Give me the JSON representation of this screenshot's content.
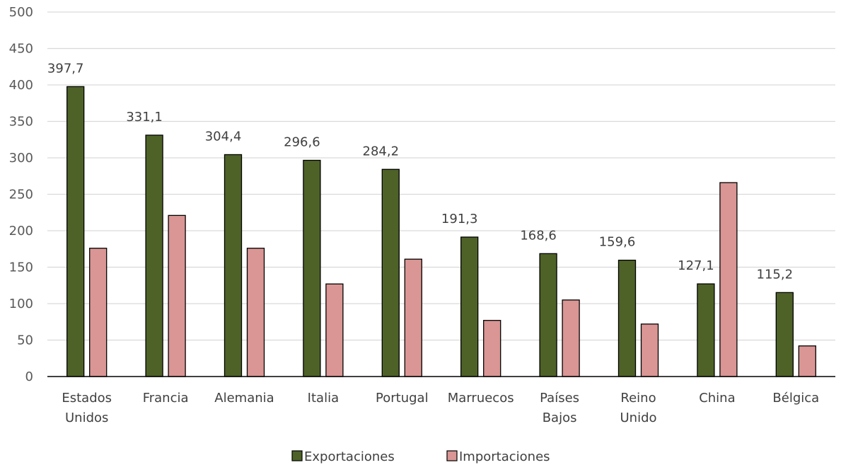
{
  "chart_data": {
    "type": "bar",
    "categories": [
      [
        "Estados",
        "Unidos"
      ],
      [
        "Francia"
      ],
      [
        "Alemania"
      ],
      [
        "Italia"
      ],
      [
        "Portugal"
      ],
      [
        "Marruecos"
      ],
      [
        "Países",
        "Bajos"
      ],
      [
        "Reino",
        "Unido"
      ],
      [
        "China"
      ],
      [
        "Bélgica"
      ]
    ],
    "series": [
      {
        "name": "Exportaciones",
        "color": "#4e6228",
        "values": [
          397.7,
          331.1,
          304.4,
          296.6,
          284.2,
          191.3,
          168.6,
          159.6,
          127.1,
          115.2
        ],
        "labels": [
          "397,7",
          "331,1",
          "304,4",
          "296,6",
          "284,2",
          "191,3",
          "168,6",
          "159,6",
          "127,1",
          "115,2"
        ]
      },
      {
        "name": "Importaciones",
        "color": "#d99694",
        "values": [
          176,
          221,
          176,
          127,
          161,
          77,
          105,
          72,
          266,
          42
        ]
      }
    ],
    "ylim": [
      0,
      500
    ],
    "yticks": [
      0,
      50,
      100,
      150,
      200,
      250,
      300,
      350,
      400,
      450,
      500
    ],
    "grid": true,
    "legend": "bottom-center"
  }
}
